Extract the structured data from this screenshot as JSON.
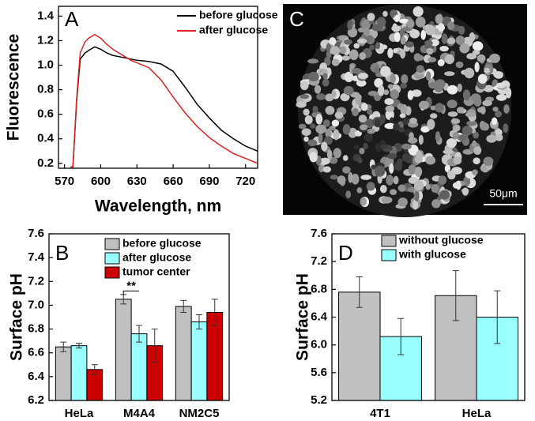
{
  "chart_data": [
    {
      "type": "line",
      "label": "A",
      "xlabel": "Wavelength, nm",
      "ylabel": "Fluorescence",
      "x": [
        575,
        577,
        580,
        583,
        587,
        590,
        595,
        600,
        605,
        610,
        615,
        620,
        625,
        630,
        640,
        650,
        660,
        670,
        680,
        690,
        700,
        710,
        720,
        730
      ],
      "series": [
        {
          "name": "before glucose",
          "color": "#000000",
          "values": [
            0.17,
            0.17,
            0.7,
            1.05,
            1.1,
            1.12,
            1.15,
            1.13,
            1.1,
            1.08,
            1.07,
            1.06,
            1.05,
            1.04,
            1.03,
            1.01,
            0.95,
            0.82,
            0.68,
            0.57,
            0.47,
            0.4,
            0.34,
            0.3
          ]
        },
        {
          "name": "after glucose",
          "color": "#e02020",
          "values": [
            0.17,
            0.17,
            0.72,
            1.1,
            1.19,
            1.22,
            1.25,
            1.22,
            1.17,
            1.13,
            1.1,
            1.07,
            1.04,
            1.02,
            0.98,
            0.88,
            0.74,
            0.61,
            0.5,
            0.41,
            0.34,
            0.28,
            0.24,
            0.2
          ]
        }
      ],
      "xlim": [
        565,
        730
      ],
      "xticks": [
        570,
        600,
        630,
        660,
        690,
        720
      ],
      "ylim": [
        0.16,
        1.48
      ],
      "yticks": [
        0.2,
        0.4,
        0.6,
        0.8,
        {
          "value": 1,
          "label": "1.0"
        },
        1.2,
        1.4
      ]
    },
    {
      "type": "bar",
      "label": "B",
      "ylabel": "Surface pH",
      "annotation": "**",
      "categories": [
        "HeLa",
        "M4A4",
        "NM2C5"
      ],
      "series": [
        {
          "name": "before glucose",
          "color": "#c0c0c0",
          "values": [
            6.65,
            7.05,
            6.99
          ],
          "errors": [
            0.04,
            0.04,
            0.05
          ]
        },
        {
          "name": "after glucose",
          "color": "#99ffff",
          "values": [
            6.66,
            6.76,
            6.86
          ],
          "errors": [
            0.02,
            0.07,
            0.06
          ]
        },
        {
          "name": "tumor center",
          "color": "#cc0000",
          "values": [
            6.46,
            6.66,
            6.94
          ],
          "errors": [
            0.04,
            0.14,
            0.11
          ]
        }
      ],
      "ylim": [
        6.2,
        7.6
      ],
      "yticks": [
        6.2,
        6.4,
        6.6,
        6.8,
        {
          "value": 7,
          "label": "7.0"
        },
        7.2,
        7.4,
        7.6
      ]
    },
    {
      "type": "image",
      "label": "C",
      "scale_bar": "50μm"
    },
    {
      "type": "bar",
      "label": "D",
      "ylabel": "Surface pH",
      "categories": [
        "4T1",
        "HeLa"
      ],
      "series": [
        {
          "name": "without glucose",
          "color": "#c0c0c0",
          "values": [
            6.76,
            6.71
          ],
          "errors": [
            0.22,
            0.36
          ]
        },
        {
          "name": "with glucose",
          "color": "#99ffff",
          "values": [
            6.12,
            6.4
          ],
          "errors": [
            0.26,
            0.38
          ]
        }
      ],
      "ylim": [
        5.2,
        7.6
      ],
      "yticks": [
        5.2,
        5.6,
        {
          "value": 6,
          "label": "6.0"
        },
        6.4,
        6.8,
        7.2,
        7.6
      ]
    }
  ]
}
